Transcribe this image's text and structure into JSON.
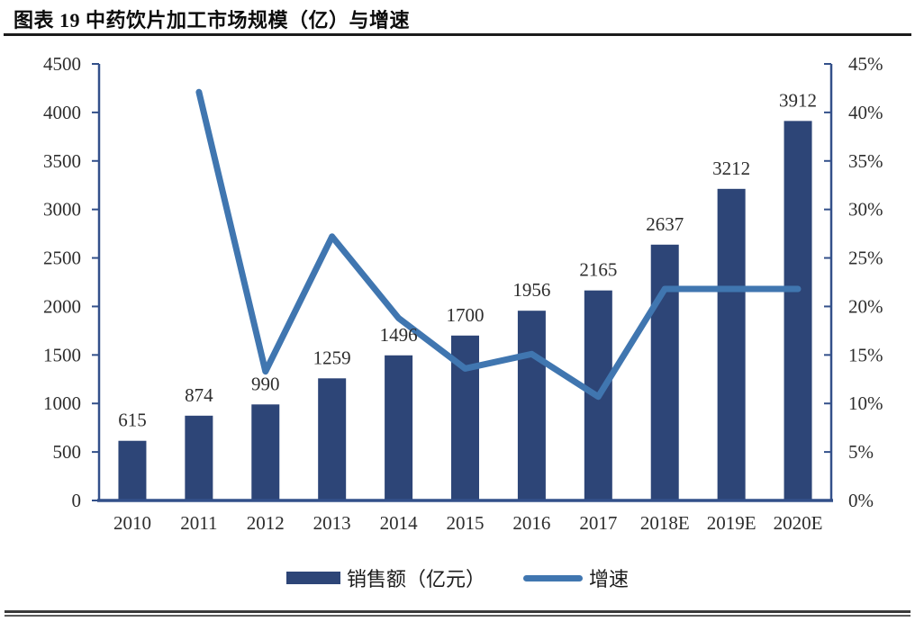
{
  "page": {
    "title": "图表 19 中药饮片加工市场规模（亿）与增速"
  },
  "legend": {
    "bar_label": "销售额（亿元）",
    "line_label": "增速"
  },
  "colors": {
    "bar": "#2d4577",
    "line": "#4076b0",
    "axis": "#33508a",
    "tick_text": "#2d2d2d",
    "value_text": "#333333",
    "title_text": "#0d0d0d"
  },
  "chart_data": {
    "type": "bar",
    "subtype": "combo-bar-line",
    "title": "图表 19 中药饮片加工市场规模（亿）与增速",
    "categories": [
      "2010",
      "2011",
      "2012",
      "2013",
      "2014",
      "2015",
      "2016",
      "2017",
      "2018E",
      "2019E",
      "2020E"
    ],
    "series": [
      {
        "name": "销售额（亿元）",
        "type": "bar",
        "axis": "left",
        "values": [
          615,
          874,
          990,
          1259,
          1496,
          1700,
          1956,
          2165,
          2637,
          3212,
          3912
        ]
      },
      {
        "name": "增速",
        "type": "line",
        "axis": "right",
        "values": [
          null,
          42.1,
          13.3,
          27.2,
          18.8,
          13.6,
          15.1,
          10.7,
          21.8,
          21.8,
          21.8
        ]
      }
    ],
    "bar_value_labels": [
      "615",
      "874",
      "990",
      "1259",
      "1496",
      "1700",
      "1956",
      "2165",
      "2637",
      "3212",
      "3912"
    ],
    "left_axis": {
      "min": 0,
      "max": 4500,
      "step": 500,
      "tick_labels": [
        "0",
        "500",
        "1000",
        "1500",
        "2000",
        "2500",
        "3000",
        "3500",
        "4000",
        "4500"
      ]
    },
    "right_axis": {
      "min": 0,
      "max": 45,
      "step": 5,
      "tick_labels": [
        "0%",
        "5%",
        "10%",
        "15%",
        "20%",
        "25%",
        "30%",
        "35%",
        "40%",
        "45%"
      ]
    },
    "xlabel": "",
    "ylabel": "",
    "grid": "off",
    "legend_position": "bottom"
  }
}
